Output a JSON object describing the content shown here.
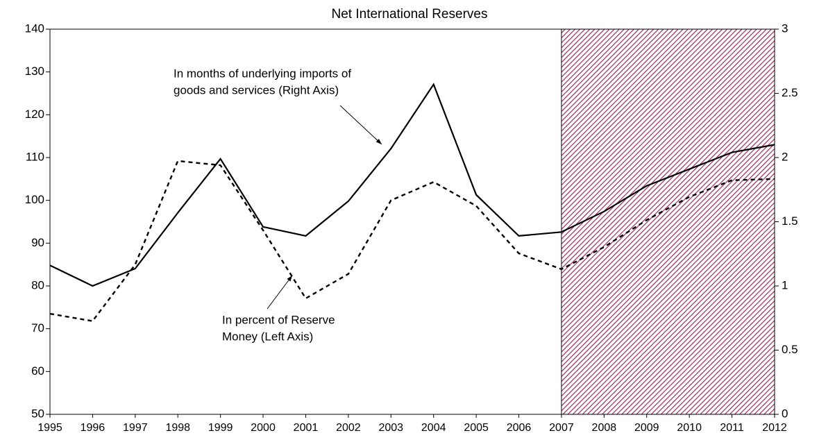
{
  "chart_data": {
    "type": "line",
    "title": "Net International Reserves",
    "categories": [
      "1995",
      "1996",
      "1997",
      "1998",
      "1999",
      "2000",
      "2001",
      "2002",
      "2003",
      "2004",
      "2005",
      "2006",
      "2007",
      "2008",
      "2009",
      "2010",
      "2011",
      "2012"
    ],
    "series": [
      {
        "name": "In percent of Reserve Money (Left Axis)",
        "color": "#000000",
        "dash": true,
        "axis": "y",
        "values": [
          73.5,
          71.8,
          85,
          109.2,
          108.2,
          93,
          77.1,
          82.8,
          100,
          104.3,
          98.7,
          87.6,
          83.9,
          89.1,
          95.4,
          100.8,
          104.7,
          105
        ]
      },
      {
        "name": "In months of underlying imports of goods and services (Right Axis)",
        "color": "#000000",
        "dash": false,
        "axis": "y2",
        "values": [
          1.16,
          1.0,
          1.135,
          1.57,
          1.99,
          1.46,
          1.39,
          1.66,
          2.07,
          2.57,
          1.71,
          1.39,
          1.42,
          1.58,
          1.78,
          1.91,
          2.04,
          2.1
        ]
      }
    ],
    "annotations": [
      {
        "lines": [
          "In months of underlying imports of",
          "goods and services (Right Axis)"
        ]
      },
      {
        "lines": [
          "In percent of Reserve",
          "Money (Left Axis)"
        ]
      }
    ],
    "shaded_region": {
      "from": "2007",
      "to": "2012",
      "color": "#9c2a5a"
    },
    "ylim": [
      50,
      140
    ],
    "yticks": [
      50,
      60,
      70,
      80,
      90,
      100,
      110,
      120,
      130,
      140
    ],
    "y2lim": [
      0,
      3
    ],
    "y2ticks": [
      0,
      0.5,
      1,
      1.5,
      2,
      2.5,
      3
    ],
    "grid": false
  }
}
